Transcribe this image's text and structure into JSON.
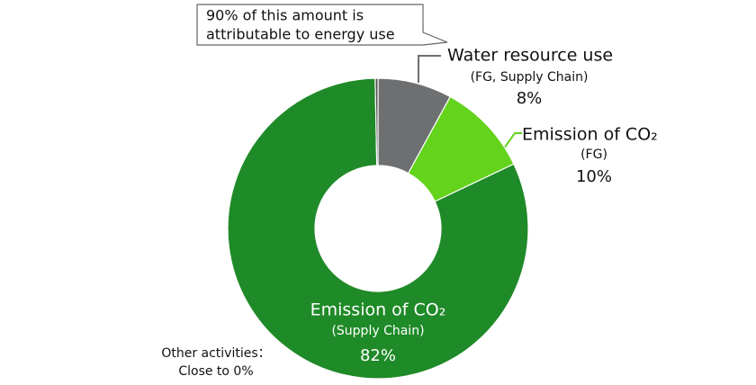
{
  "chart_data": {
    "type": "donut",
    "annotation": [
      "90% of this amount is",
      "attributable to energy use"
    ],
    "categories": [
      "Water resource use",
      "Emission of CO₂",
      "Emission of CO₂",
      "Other activities："
    ],
    "sublabels": [
      "(FG, Supply Chain)",
      "(FG)",
      "(Supply Chain)",
      null
    ],
    "values": [
      8,
      10,
      82,
      0.3
    ],
    "value_labels": [
      "8%",
      "10%",
      "82%",
      "Close to 0%"
    ],
    "colors": [
      "#6e6f71",
      "#63d31c",
      "#1f8a28",
      "#4a4a4a"
    ]
  }
}
